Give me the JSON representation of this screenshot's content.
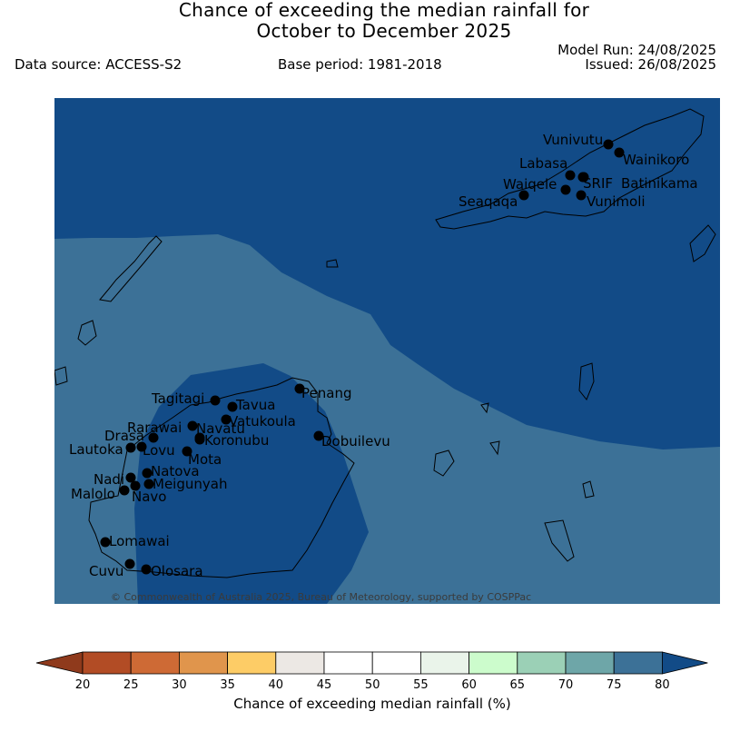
{
  "title": {
    "line1": "Chance of exceeding the median rainfall for",
    "line2": "October to December 2025"
  },
  "meta": {
    "model_run": "Model Run: 24/08/2025",
    "issued": "Issued: 26/08/2025",
    "data_source": "Data source: ACCESS-S2",
    "base_period": "Base period: 1981-2018"
  },
  "copyright": "© Commonwealth of Australia 2025, Bureau of Meteorology, supported by COSPPac",
  "colors": {
    "band_75_80": "#3c7197",
    "band_80_plus": "#124b87",
    "coast": "#000000",
    "station_marker": "#000000"
  },
  "stations": [
    {
      "name": "Vunivutu"
    },
    {
      "name": "Wainikoro"
    },
    {
      "name": "Labasa"
    },
    {
      "name": "SRIF"
    },
    {
      "name": "Batinikama"
    },
    {
      "name": "Waiqele"
    },
    {
      "name": "Seaqaqa"
    },
    {
      "name": "Vunimoli"
    },
    {
      "name": "Tagitagi"
    },
    {
      "name": "Tavua"
    },
    {
      "name": "Penang"
    },
    {
      "name": "Vatukoula"
    },
    {
      "name": "Rarawai"
    },
    {
      "name": "Navatu"
    },
    {
      "name": "Drasa"
    },
    {
      "name": "Koronubu"
    },
    {
      "name": "Dobuilevu"
    },
    {
      "name": "Lautoka"
    },
    {
      "name": "Lovu"
    },
    {
      "name": "Mota"
    },
    {
      "name": "Natova"
    },
    {
      "name": "Nadi"
    },
    {
      "name": "Meigunyah"
    },
    {
      "name": "Malolo"
    },
    {
      "name": "Navo"
    },
    {
      "name": "Lomawai"
    },
    {
      "name": "Cuvu"
    },
    {
      "name": "Olosara"
    }
  ],
  "colorbar": {
    "label": "Chance of exceeding median rainfall (%)",
    "ticks": [
      "20",
      "25",
      "30",
      "35",
      "40",
      "45",
      "50",
      "55",
      "60",
      "65",
      "70",
      "75",
      "80"
    ],
    "under_color": "#8f3a1c",
    "over_color": "#124b87",
    "colors": [
      "#b24c25",
      "#ce6a35",
      "#e0954c",
      "#fdcc66",
      "#ece8e4",
      "#ffffff",
      "#ffffff",
      "#eaf4ea",
      "#ccfccc",
      "#9bd0b6",
      "#6ea6a8",
      "#3c7197"
    ]
  }
}
